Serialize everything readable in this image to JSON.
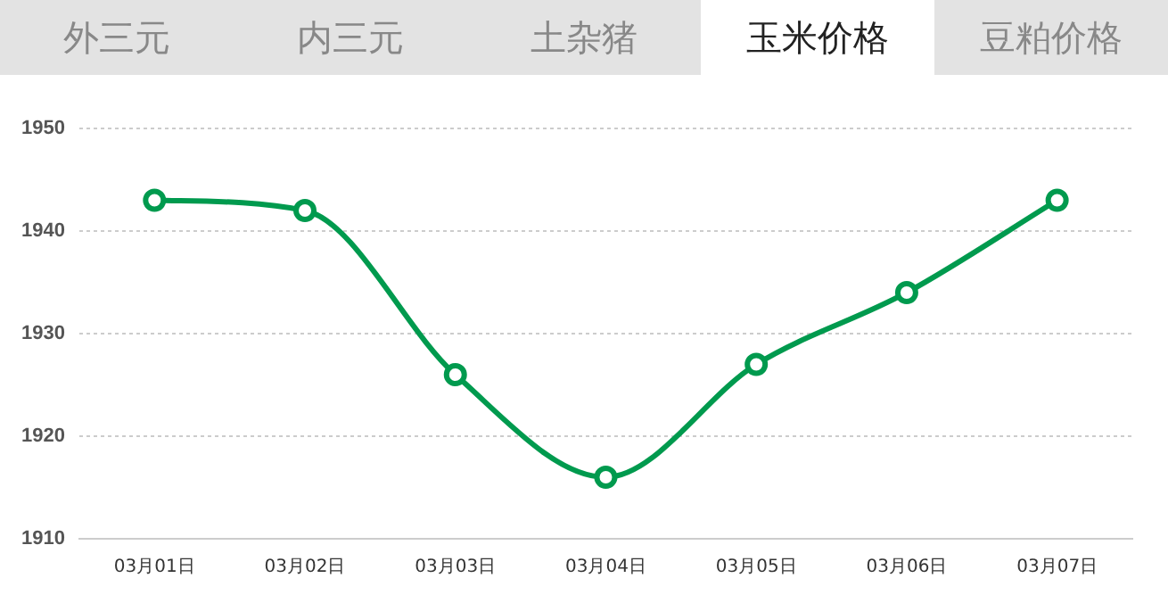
{
  "chart_data": {
    "type": "line",
    "annotations": [
      "外三元",
      "内三元",
      "土杂猪",
      "玉米价格",
      "豆粕价格"
    ],
    "categories": [
      "03月01日",
      "03月02日",
      "03月03日",
      "03月04日",
      "03月05日",
      "03月06日",
      "03月07日"
    ],
    "series": [
      {
        "color": "#009a4e",
        "values": [
          1943,
          1942,
          1926,
          1916,
          1927,
          1934,
          1943
        ]
      }
    ],
    "ylim": [
      1910,
      1950
    ],
    "yticks": [
      1910,
      1920,
      1930,
      1940,
      1950
    ],
    "grid": "y",
    "marker": "circle",
    "line_style": "solid"
  }
}
